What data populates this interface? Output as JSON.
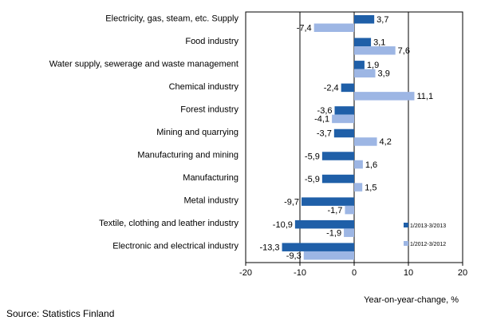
{
  "chart_data": {
    "type": "bar",
    "orientation": "horizontal",
    "categories": [
      "Electricity, gas, steam, etc. Supply",
      "Food industry",
      "Water supply, sewerage and waste management",
      "Chemical industry",
      "Forest industry",
      "Mining and quarrying",
      "Manufacturing and mining",
      "Manufacturing",
      "Metal industry",
      "Textile, clothing and leather industry",
      "Electronic and electrical industry"
    ],
    "series": [
      {
        "name": "1/2013-3/2013",
        "color": "#1f5fa8",
        "values": [
          3.7,
          3.1,
          1.9,
          -2.4,
          -3.6,
          -3.7,
          -5.9,
          -5.9,
          -9.7,
          -10.9,
          -13.3
        ],
        "labels": [
          "3,7",
          "3,1",
          "1,9",
          "-2,4",
          "-3,6",
          "-3,7",
          "-5,9",
          "-5,9",
          "-9,7",
          "-10,9",
          "-13,3"
        ]
      },
      {
        "name": "1/2012-3/2012",
        "color": "#9db6e4",
        "values": [
          -7.4,
          7.6,
          3.9,
          11.1,
          -4.1,
          4.2,
          1.6,
          1.5,
          -1.7,
          -1.9,
          -9.3
        ],
        "labels": [
          "-7,4",
          "7,6",
          "3,9",
          "11,1",
          "-4,1",
          "4,2",
          "1,6",
          "1,5",
          "-1,7",
          "-1,9",
          "-9,3"
        ]
      }
    ],
    "xlim": [
      -20,
      20
    ],
    "xticks": [
      -20,
      -10,
      0,
      10,
      20
    ],
    "gridlines_at": [
      -10,
      10
    ],
    "xlabel": "Year-on-year-change, %",
    "legend_position": "bottom-right",
    "source": "Source: Statistics Finland"
  }
}
